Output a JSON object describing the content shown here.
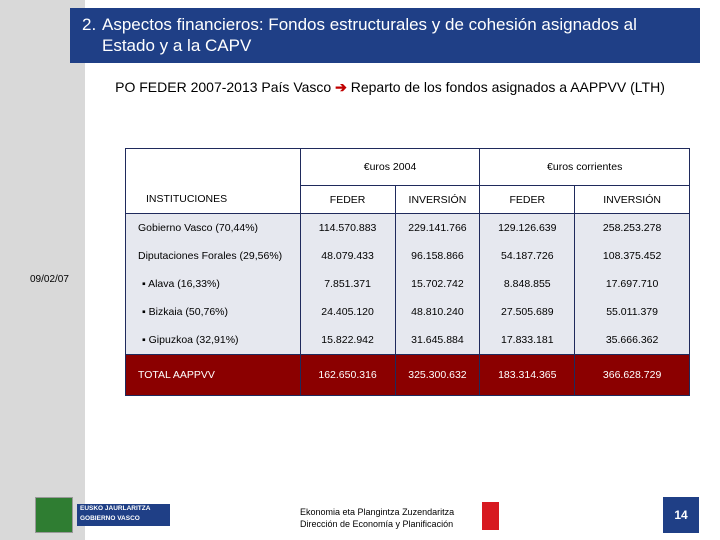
{
  "header": {
    "number": "2.",
    "title": "Aspectos financieros: Fondos estructurales y de cohesión asignados al Estado y a la CAPV"
  },
  "subtitle": {
    "left": "PO FEDER 2007-2013 País Vasco",
    "right": "Reparto de los fondos asignados a AAPPVV (LTH)"
  },
  "date": "09/02/07",
  "table": {
    "column_groups": [
      "€uros 2004",
      "€uros corrientes"
    ],
    "columns": [
      "INSTITUCIONES",
      "FEDER",
      "INVERSIÓN",
      "FEDER",
      "INVERSIÓN"
    ],
    "rows": [
      [
        "Gobierno Vasco (70,44%)",
        "114.570.883",
        "229.141.766",
        "129.126.639",
        "258.253.278"
      ],
      [
        "Diputaciones Forales (29,56%)",
        "48.079.433",
        "96.158.866",
        "54.187.726",
        "108.375.452"
      ],
      [
        "Alava (16,33%)",
        "7.851.371",
        "15.702.742",
        "8.848.855",
        "17.697.710"
      ],
      [
        "Bizkaia (50,76%)",
        "24.405.120",
        "48.810.240",
        "27.505.689",
        "55.011.379"
      ],
      [
        "Gipuzkoa (32,91%)",
        "15.822.942",
        "31.645.884",
        "17.833.181",
        "35.666.362"
      ],
      [
        "TOTAL AAPPVV",
        "162.650.316",
        "325.300.632",
        "183.314.365",
        "366.628.729"
      ]
    ]
  },
  "logo": [
    "EUSKO JAURLARITZA",
    "GOBIERNO VASCO"
  ],
  "footer": [
    "Ekonomia eta Plangintza Zuzendaritza",
    "Dirección de Economía y Planificación"
  ],
  "page_number": "14"
}
